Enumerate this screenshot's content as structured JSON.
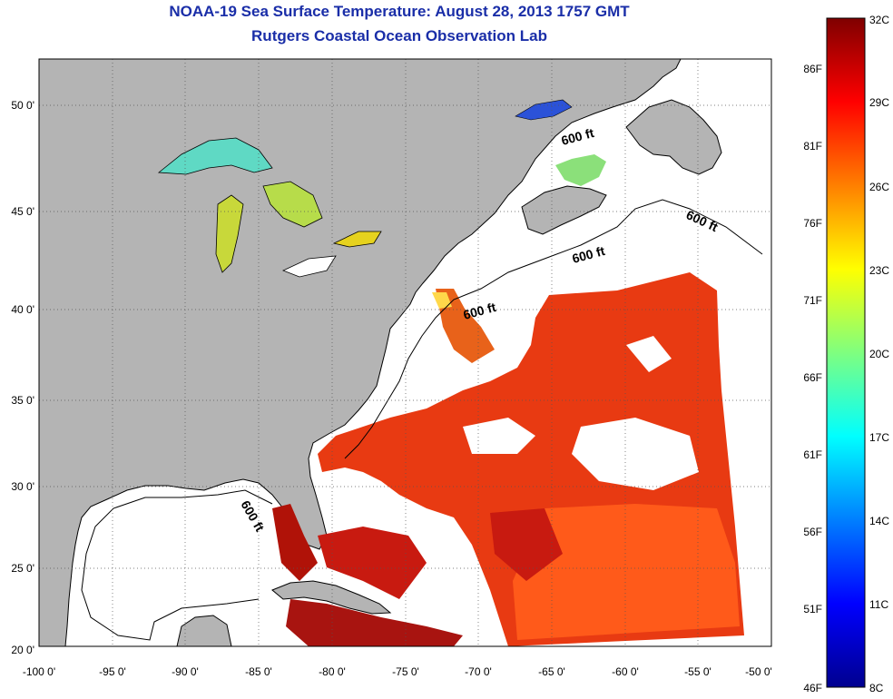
{
  "title": "NOAA-19 Sea Surface Temperature:  August 28, 2013 1757 GMT",
  "subtitle": "Rutgers Coastal Ocean Observation Lab",
  "map": {
    "lon_range": [
      -100,
      -50
    ],
    "lat_range": [
      20,
      52.5
    ],
    "lat_ticks": [
      "20 0'",
      "25 0'",
      "30 0'",
      "35 0'",
      "40 0'",
      "45 0'",
      "50 0'"
    ],
    "lon_ticks": [
      "-100 0'",
      "-95 0'",
      "-90 0'",
      "-85 0'",
      "-80 0'",
      "-75 0'",
      "-70 0'",
      "-65 0'",
      "-60 0'",
      "-55 0'",
      "-50 0'"
    ],
    "grid": "dotted",
    "land_color": "#b4b4b4",
    "no_data_color": "#ffffff",
    "contour_labels": [
      "600 ft",
      "600 ft",
      "600 ft",
      "600 ft",
      "600 ft"
    ]
  },
  "colorbar": {
    "celsius_labels": [
      "32C",
      "29C",
      "26C",
      "23C",
      "20C",
      "17C",
      "14C",
      "11C",
      "8C"
    ],
    "fahrenheit_labels": [
      "86F",
      "81F",
      "76F",
      "71F",
      "66F",
      "61F",
      "56F",
      "51F",
      "46F"
    ],
    "colors": [
      "#7f0000",
      "#ff0000",
      "#ff7f00",
      "#ffff00",
      "#7fff7f",
      "#00ffff",
      "#007fff",
      "#0000ff",
      "#00008f"
    ]
  }
}
